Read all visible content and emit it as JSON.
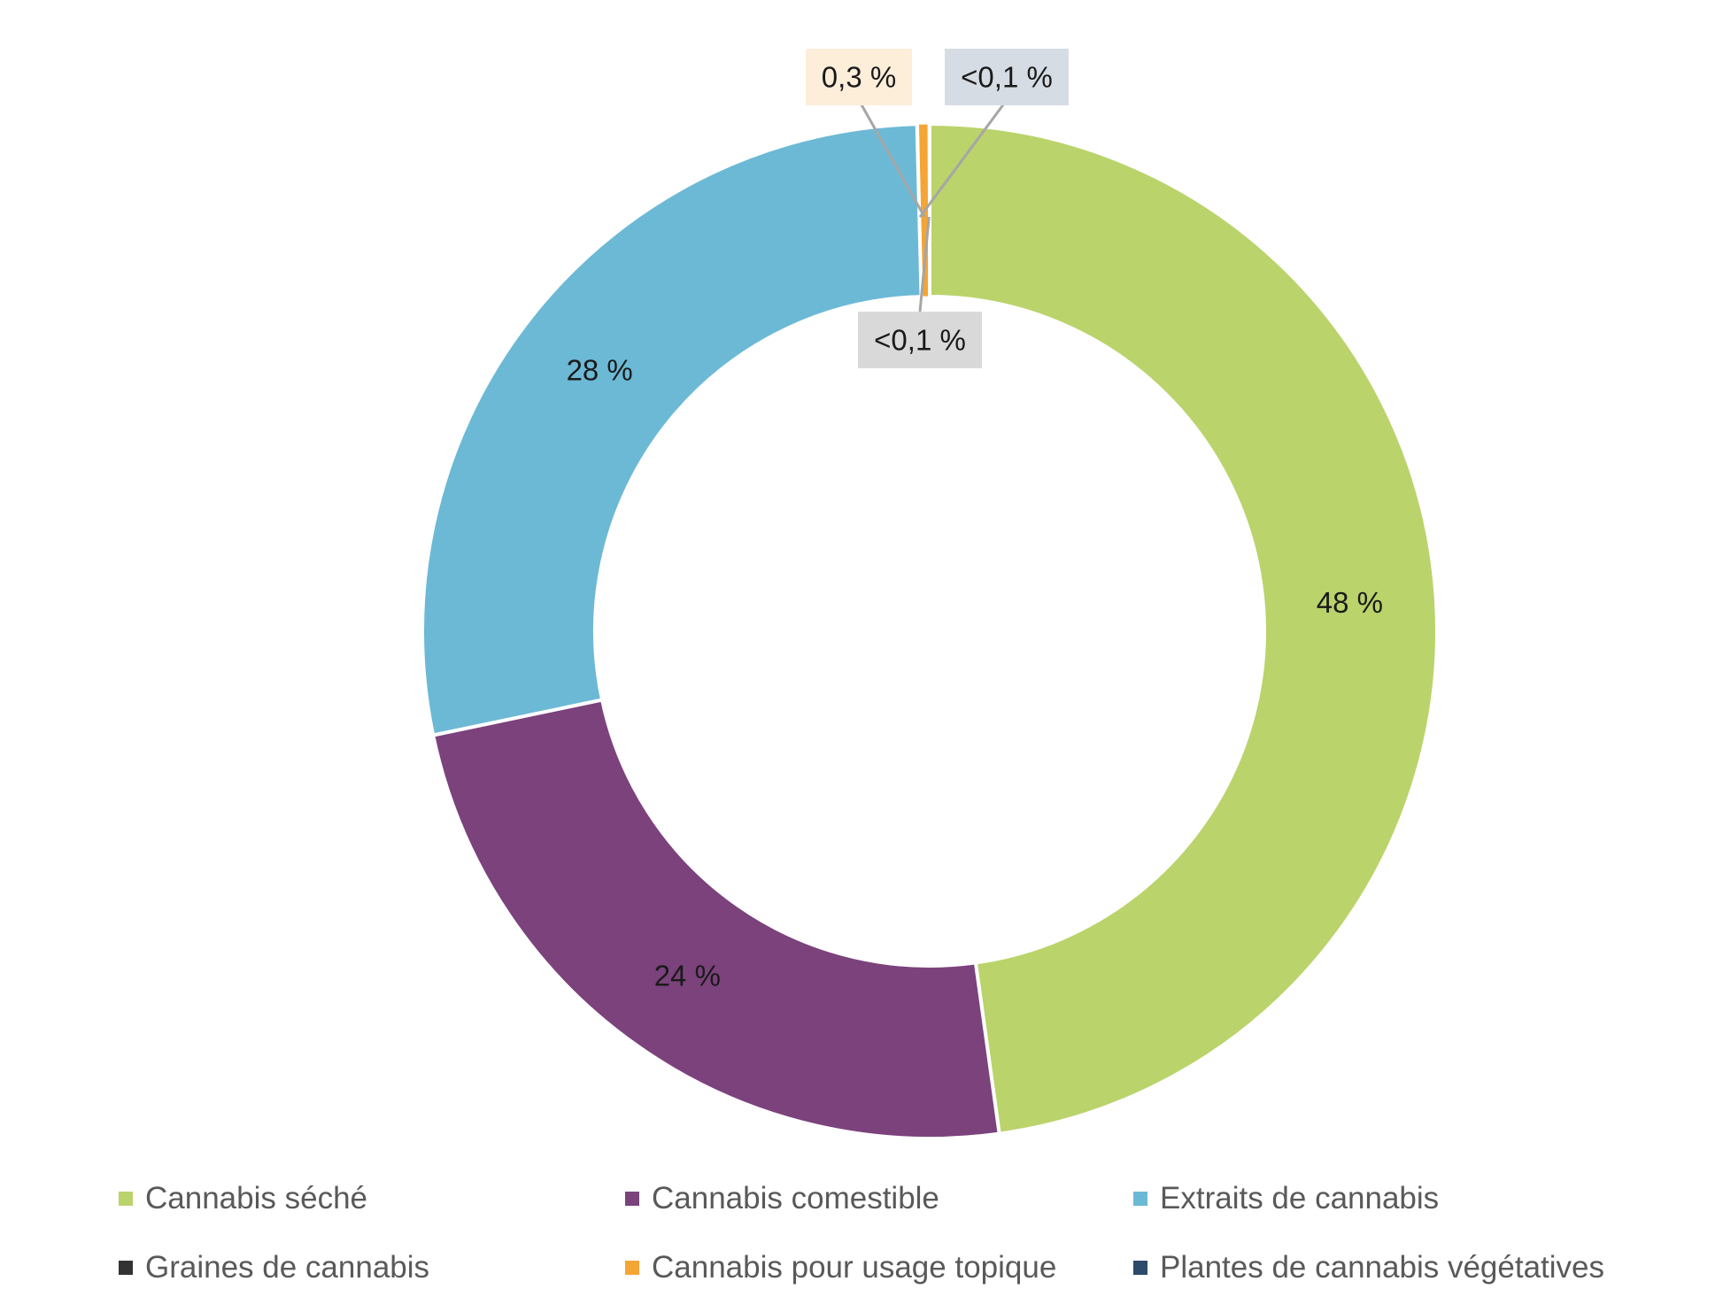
{
  "chart_data": {
    "type": "pie",
    "style": "donut",
    "title": "",
    "legend_position": "bottom",
    "series": [
      {
        "name": "Cannabis séché",
        "value": 48,
        "label": "48 %",
        "color": "#BAD36B"
      },
      {
        "name": "Cannabis comestible",
        "value": 24,
        "label": "24 %",
        "color": "#7B427C"
      },
      {
        "name": "Extraits de cannabis",
        "value": 28,
        "label": "28 %",
        "color": "#6CB9D6"
      },
      {
        "name": "Graines de cannabis",
        "value": 0.05,
        "label": "<0,1 %",
        "color": "#333333",
        "label_bg": "#D9D9D9"
      },
      {
        "name": "Cannabis pour usage topique",
        "value": 0.3,
        "label": "0,3 %",
        "color": "#F5A533",
        "label_bg": "#FDEEDA"
      },
      {
        "name": "Plantes de cannabis végétatives",
        "value": 0.05,
        "label": "<0,1 %",
        "color": "#2E4A6B",
        "label_bg": "#D6DCE3"
      }
    ]
  }
}
